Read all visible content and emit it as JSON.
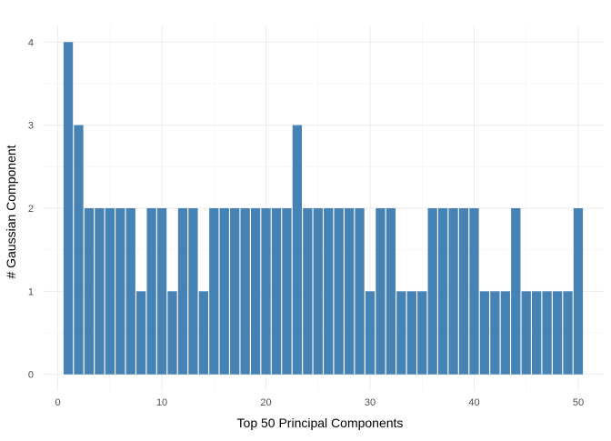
{
  "chart_data": {
    "type": "bar",
    "xlabel": "Top 50 Principal Components",
    "ylabel": "# Gaussian Component",
    "x": [
      1,
      2,
      3,
      4,
      5,
      6,
      7,
      8,
      9,
      10,
      11,
      12,
      13,
      14,
      15,
      16,
      17,
      18,
      19,
      20,
      21,
      22,
      23,
      24,
      25,
      26,
      27,
      28,
      29,
      30,
      31,
      32,
      33,
      34,
      35,
      36,
      37,
      38,
      39,
      40,
      41,
      42,
      43,
      44,
      45,
      46,
      47,
      48,
      49,
      50
    ],
    "values": [
      4,
      3,
      2,
      2,
      2,
      2,
      2,
      1,
      2,
      2,
      1,
      2,
      2,
      1,
      2,
      2,
      2,
      2,
      2,
      2,
      2,
      2,
      3,
      2,
      2,
      2,
      2,
      2,
      2,
      1,
      2,
      2,
      1,
      1,
      1,
      2,
      2,
      2,
      2,
      2,
      1,
      1,
      1,
      2,
      1,
      1,
      1,
      1,
      1,
      2
    ],
    "xticks": [
      0,
      10,
      20,
      30,
      40,
      50
    ],
    "yticks": [
      0,
      1,
      2,
      3,
      4
    ],
    "xlim": [
      -1.45,
      52.45
    ],
    "ylim": [
      -0.2,
      4.2
    ],
    "grid": true,
    "bar_color": "#4682B4",
    "grid_color": "#EBEBEB"
  }
}
